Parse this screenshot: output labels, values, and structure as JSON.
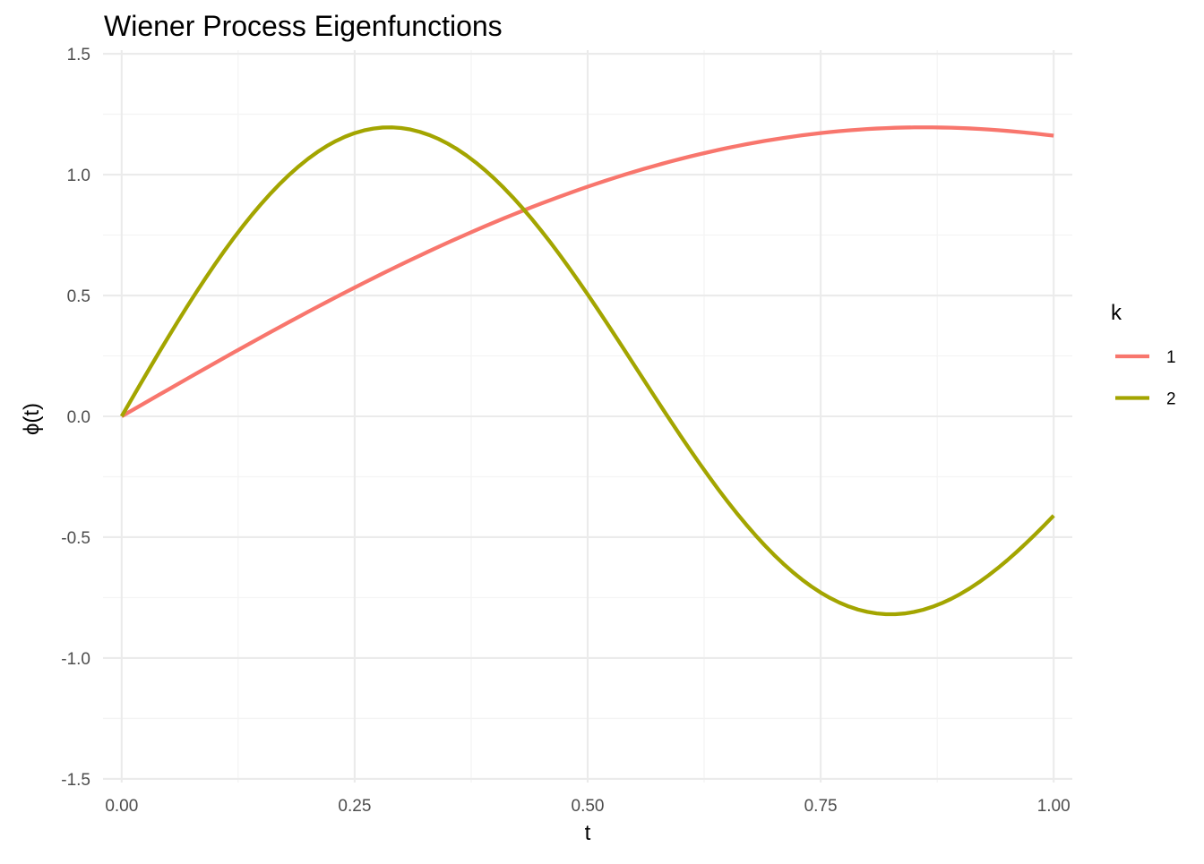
{
  "chart_data": {
    "type": "line",
    "title": "Wiener Process Eigenfunctions",
    "xlabel": "t",
    "ylabel": "ϕ(t)",
    "xlim": [
      -0.02,
      1.02
    ],
    "ylim": [
      -1.515,
      1.515
    ],
    "x_ticks": [
      0,
      0.25,
      0.5,
      0.75,
      1
    ],
    "x_tick_labels": [
      "0.00",
      "0.25",
      "0.50",
      "0.75",
      "1.00"
    ],
    "y_ticks": [
      -1.5,
      -1,
      -0.5,
      0,
      0.5,
      1,
      1.5
    ],
    "y_tick_labels": [
      "-1.5",
      "-1.0",
      "-0.5",
      "0.0",
      "0.5",
      "1.0",
      "1.5"
    ],
    "grid": true,
    "legend": {
      "title": "k",
      "position": "right"
    },
    "x": [
      0,
      0.01,
      0.02,
      0.03,
      0.04,
      0.05,
      0.06,
      0.07,
      0.08,
      0.09,
      0.1,
      0.11,
      0.12,
      0.13,
      0.14,
      0.15,
      0.16,
      0.17,
      0.18,
      0.19,
      0.2,
      0.21,
      0.22,
      0.23,
      0.24,
      0.25,
      0.26,
      0.27,
      0.28,
      0.29,
      0.3,
      0.31,
      0.32,
      0.33,
      0.34,
      0.35,
      0.36,
      0.37,
      0.38,
      0.39,
      0.4,
      0.41,
      0.42,
      0.43,
      0.44,
      0.45,
      0.46,
      0.47,
      0.48,
      0.49,
      0.5,
      0.51,
      0.52,
      0.53,
      0.54,
      0.55,
      0.56,
      0.57,
      0.58,
      0.59,
      0.6,
      0.61,
      0.62,
      0.63,
      0.64,
      0.65,
      0.66,
      0.67,
      0.68,
      0.69,
      0.7,
      0.71,
      0.72,
      0.73,
      0.74,
      0.75,
      0.76,
      0.77,
      0.78,
      0.79,
      0.8,
      0.81,
      0.82,
      0.83,
      0.84,
      0.85,
      0.86,
      0.87,
      0.88,
      0.89,
      0.9,
      0.91,
      0.92,
      0.93,
      0.94,
      0.95,
      0.96,
      0.97,
      0.98,
      0.99,
      1
    ],
    "series": [
      {
        "name": "1",
        "color": "#F8766D",
        "values": [
          0,
          0.0222,
          0.0444,
          0.0666,
          0.0887,
          0.1108,
          0.1329,
          0.1549,
          0.1768,
          0.1987,
          0.2205,
          0.2422,
          0.2638,
          0.2853,
          0.3067,
          0.3279,
          0.3491,
          0.3701,
          0.391,
          0.4117,
          0.4323,
          0.4528,
          0.473,
          0.4931,
          0.5131,
          0.5328,
          0.5524,
          0.5717,
          0.5909,
          0.6098,
          0.6286,
          0.6471,
          0.6653,
          0.6834,
          0.7012,
          0.7188,
          0.7361,
          0.7532,
          0.77,
          0.7866,
          0.8029,
          0.8189,
          0.8346,
          0.8501,
          0.8652,
          0.8801,
          0.8947,
          0.909,
          0.9229,
          0.9366,
          0.95,
          0.963,
          0.9757,
          0.9881,
          1.0002,
          1.0119,
          1.0233,
          1.0343,
          1.045,
          1.0554,
          1.0654,
          1.0751,
          1.0844,
          1.0933,
          1.1019,
          1.1102,
          1.118,
          1.1255,
          1.1326,
          1.1394,
          1.1457,
          1.1517,
          1.1573,
          1.1625,
          1.1674,
          1.1719,
          1.176,
          1.1797,
          1.183,
          1.1859,
          1.1885,
          1.1906,
          1.1924,
          1.1938,
          1.1948,
          1.1954,
          1.1956,
          1.1955,
          1.1949,
          1.194,
          1.1927,
          1.1911,
          1.1891,
          1.1867,
          1.184,
          1.181,
          1.1776,
          1.1739,
          1.1699,
          1.1656,
          1.1611
        ]
      },
      {
        "name": "2",
        "color": "#A3A500",
        "values": [
          0,
          0.0666,
          0.1329,
          0.1987,
          0.2638,
          0.3279,
          0.391,
          0.4528,
          0.5131,
          0.5717,
          0.6286,
          0.6834,
          0.7361,
          0.7866,
          0.8346,
          0.8801,
          0.9229,
          0.963,
          1.0002,
          1.0343,
          1.0654,
          1.0933,
          1.118,
          1.1394,
          1.1573,
          1.1719,
          1.183,
          1.1906,
          1.1948,
          1.1955,
          1.1927,
          1.1865,
          1.1769,
          1.1639,
          1.1476,
          1.128,
          1.1051,
          1.0791,
          1.05,
          1.0179,
          0.9829,
          0.9452,
          0.9048,
          0.8619,
          0.8166,
          0.7691,
          0.7196,
          0.6682,
          0.615,
          0.5604,
          0.5044,
          0.4473,
          0.3892,
          0.3305,
          0.2712,
          0.2116,
          0.152,
          0.0926,
          0.0336,
          -0.0248,
          -0.0825,
          -0.1392,
          -0.1947,
          -0.2488,
          -0.3013,
          -0.352,
          -0.4008,
          -0.4474,
          -0.4918,
          -0.5338,
          -0.5733,
          -0.6101,
          -0.6442,
          -0.6754,
          -0.7038,
          -0.7291,
          -0.7513,
          -0.7705,
          -0.7865,
          -0.7993,
          -0.8089,
          -0.8153,
          -0.8186,
          -0.8187,
          -0.8156,
          -0.8094,
          -0.8002,
          -0.788,
          -0.773,
          -0.7552,
          -0.7347,
          -0.7116,
          -0.6861,
          -0.6582,
          -0.6282,
          -0.5961,
          -0.5621,
          -0.5264,
          -0.4891,
          -0.4504,
          -0.4105
        ]
      }
    ]
  }
}
